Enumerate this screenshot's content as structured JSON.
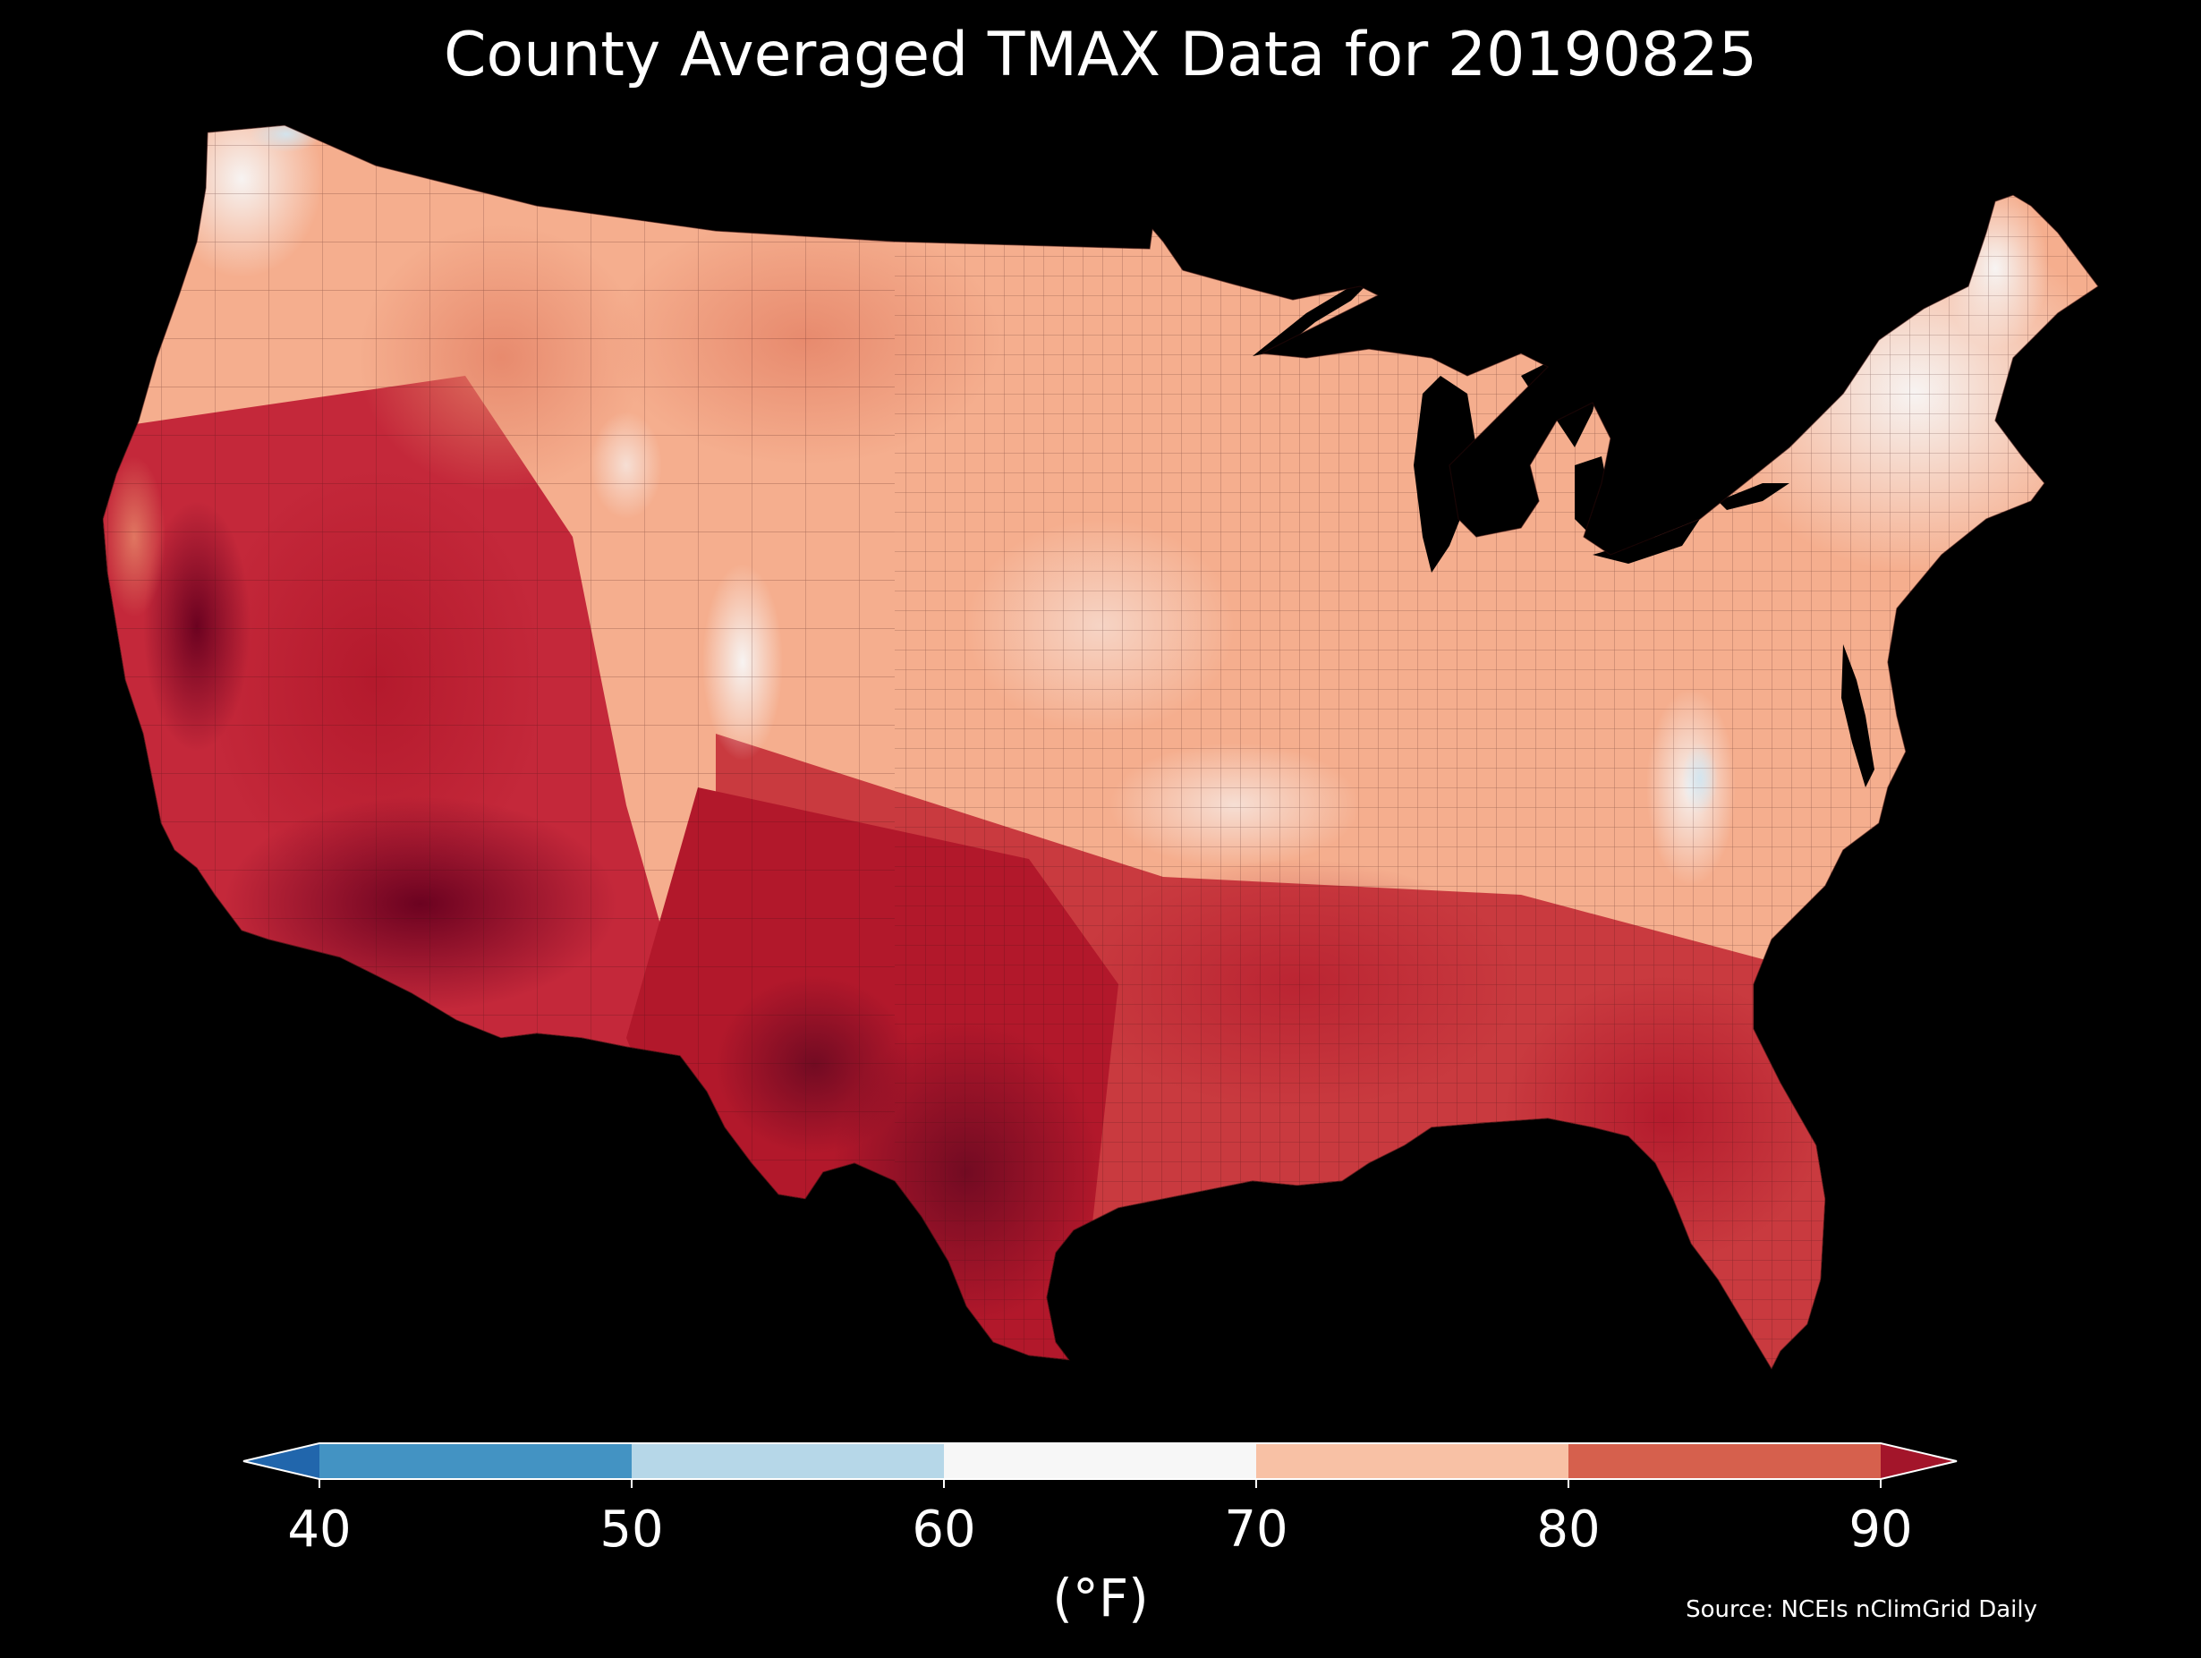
{
  "title": "County Averaged TMAX Data for 20190825",
  "colorbar": {
    "unit_label": "(°F)",
    "ticks": [
      "40",
      "50",
      "60",
      "70",
      "80",
      "90"
    ],
    "bins": [
      {
        "range": "<40",
        "color": "#2166ac"
      },
      {
        "range": "40-50",
        "color": "#4393c3"
      },
      {
        "range": "50-60",
        "color": "#b6d7e8"
      },
      {
        "range": "60-70",
        "color": "#f7f7f7"
      },
      {
        "range": "70-80",
        "color": "#f8c1a5"
      },
      {
        "range": "80-90",
        "color": "#d6604d"
      },
      {
        "range": ">90",
        "color": "#a3152a"
      }
    ]
  },
  "source": "Source: NCEIs nClimGrid Daily",
  "background_color": "#000000",
  "map": {
    "region": "Contiguous United States",
    "variable": "TMAX",
    "units": "°F",
    "date": "20190825",
    "regional_values": [
      {
        "region": "Pacific Northwest coast",
        "approx_tmax": 65
      },
      {
        "region": "Northern Rockies / Montana",
        "approx_tmax": 78
      },
      {
        "region": "Great Basin / Nevada",
        "approx_tmax": 90
      },
      {
        "region": "Desert Southwest",
        "approx_tmax": 98
      },
      {
        "region": "Colorado Rockies",
        "approx_tmax": 68
      },
      {
        "region": "Northern Plains",
        "approx_tmax": 74
      },
      {
        "region": "Midwest",
        "approx_tmax": 68
      },
      {
        "region": "Texas",
        "approx_tmax": 95
      },
      {
        "region": "Southeast",
        "approx_tmax": 88
      },
      {
        "region": "Florida",
        "approx_tmax": 90
      },
      {
        "region": "Appalachians",
        "approx_tmax": 64
      },
      {
        "region": "Northeast",
        "approx_tmax": 66
      }
    ]
  }
}
